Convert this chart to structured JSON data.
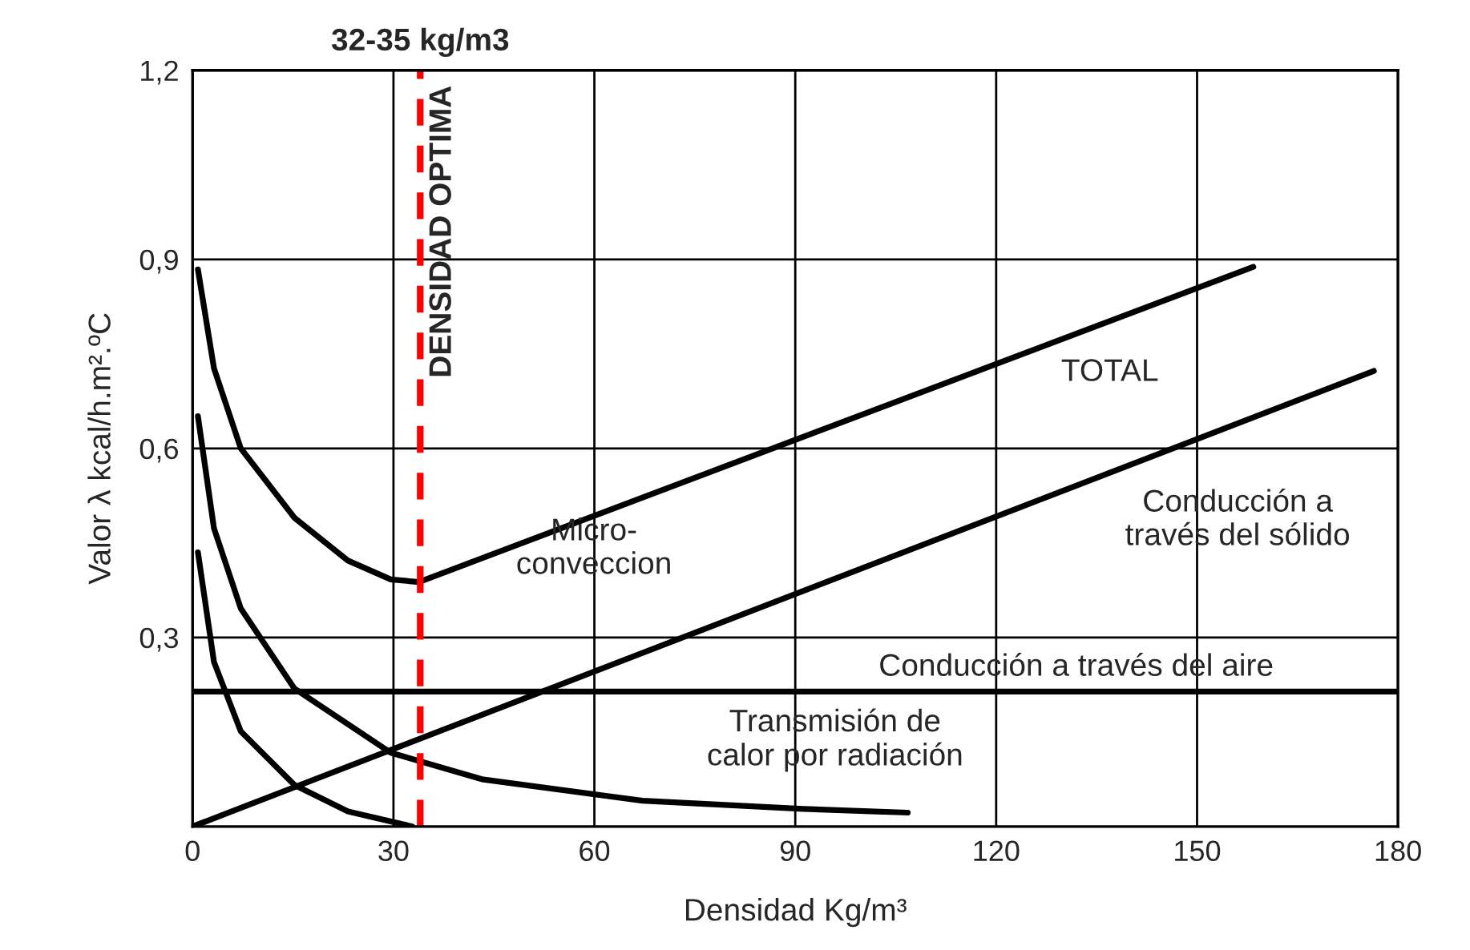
{
  "chart_data": {
    "type": "line",
    "xlabel": "Densidad Kg/m³",
    "ylabel": "Valor λ kcal/h.m².ºC",
    "xlim": [
      0,
      180
    ],
    "ylim": [
      0,
      1.2
    ],
    "xticks": [
      0,
      30,
      60,
      90,
      120,
      150,
      180
    ],
    "yticks": [
      {
        "value": 0.3,
        "label": "0,3"
      },
      {
        "value": 0.6,
        "label": "0,6"
      },
      {
        "value": 0.9,
        "label": "0,9"
      },
      {
        "value": 1.2,
        "label": "1,2"
      }
    ],
    "grid": true,
    "line_style": "solid",
    "series": [
      {
        "color": "#000000",
        "x": [
          0.8,
          3.2,
          7.2,
          15.2,
          23.2,
          29.6,
          33.8,
          158.4
        ],
        "values": [
          0.884,
          0.727,
          0.6,
          0.49,
          0.422,
          0.392,
          0.388,
          0.888
        ]
      },
      {
        "color": "#000000",
        "x": [
          0,
          176.4
        ],
        "values": [
          0,
          0.723
        ]
      },
      {
        "color": "#000000",
        "x": [
          0,
          180
        ],
        "values": [
          0.214,
          0.214
        ]
      },
      {
        "color": "#000000",
        "x": [
          0.8,
          3.2,
          7.2,
          15.2,
          29.6,
          43.2,
          67.2,
          91.2,
          106.8
        ],
        "values": [
          0.651,
          0.473,
          0.346,
          0.219,
          0.117,
          0.075,
          0.041,
          0.028,
          0.022
        ]
      },
      {
        "color": "#000000",
        "x": [
          0.8,
          3.2,
          7.2,
          15.2,
          23.2,
          32.8
        ],
        "values": [
          0.435,
          0.261,
          0.151,
          0.066,
          0.024,
          0
        ]
      }
    ],
    "ref_lines": [
      {
        "axis": "x",
        "value": 34,
        "label": "DENSIDAD OPTIMA",
        "color": "#ff0000",
        "line_style": "dashed"
      }
    ],
    "annotations": [
      "32-35 kg/m3",
      "TOTAL",
      "Conducción a\ntravés del sólido",
      "Micro-\nconveccion",
      "Conducción a través del aire",
      "Transmisión de\ncalor por radiación"
    ]
  }
}
